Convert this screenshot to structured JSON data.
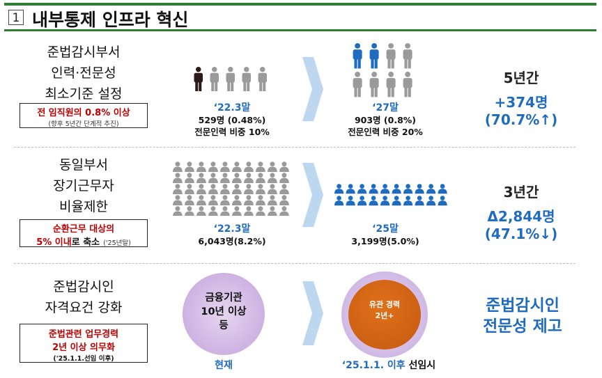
{
  "header": {
    "number": "1",
    "title": "내부통제 인프라 혁신"
  },
  "row1": {
    "label_lines": [
      "준법감시부서",
      "인력·전문성",
      "최소기준 설정"
    ],
    "box_red": "전 임직원의 0.8% 이상",
    "box_note": "(향후 5년간 단계적 추진)",
    "before_year": "‘22.3말",
    "before_lines": [
      "529명 (0.48%)",
      "전문인력 비중 10%"
    ],
    "after_year": "‘27말",
    "after_lines": [
      "903명 (0.8%)",
      "전문인력 비중 20%"
    ],
    "period": "5년간",
    "change": "+374명",
    "change_pct": "(70.7%↑)",
    "colors": {
      "before_highlight": "#2b1a17",
      "after_highlight": "#1f6bbf",
      "figure_gray": "#9a9a9a"
    }
  },
  "row2": {
    "label_lines": [
      "동일부서",
      "장기근무자",
      "비율제한"
    ],
    "box_red_line1": "순환근무 대상의",
    "box_red_line2": "5% 이내",
    "box_black": "로 축소",
    "box_note": "('25년말)",
    "before_year": "‘22.3말",
    "before_value": "6,043명(8.2%)",
    "after_year": "‘25말",
    "after_value": "3,199명(5.0%)",
    "period": "3년간",
    "change": "Δ2,844명",
    "change_pct": "(47.1%↓)"
  },
  "row3": {
    "label_lines": [
      "준법감시인",
      "자격요건 강화"
    ],
    "box_red_line1": "준법관련 업무경력",
    "box_red_line2": "2년 이상 의무화",
    "box_note": "('25.1.1.선임 이후)",
    "circle_before_lines": [
      "금융기관",
      "10년 이상",
      "등"
    ],
    "circle_after_lines": [
      "유관 경력",
      "2년+"
    ],
    "caption_before": "현재",
    "caption_after_blue": "‘25.1.1. 이후",
    "caption_after_black": " 선임시",
    "summary_lines": [
      "준법감시인",
      "전문성 제고"
    ]
  }
}
